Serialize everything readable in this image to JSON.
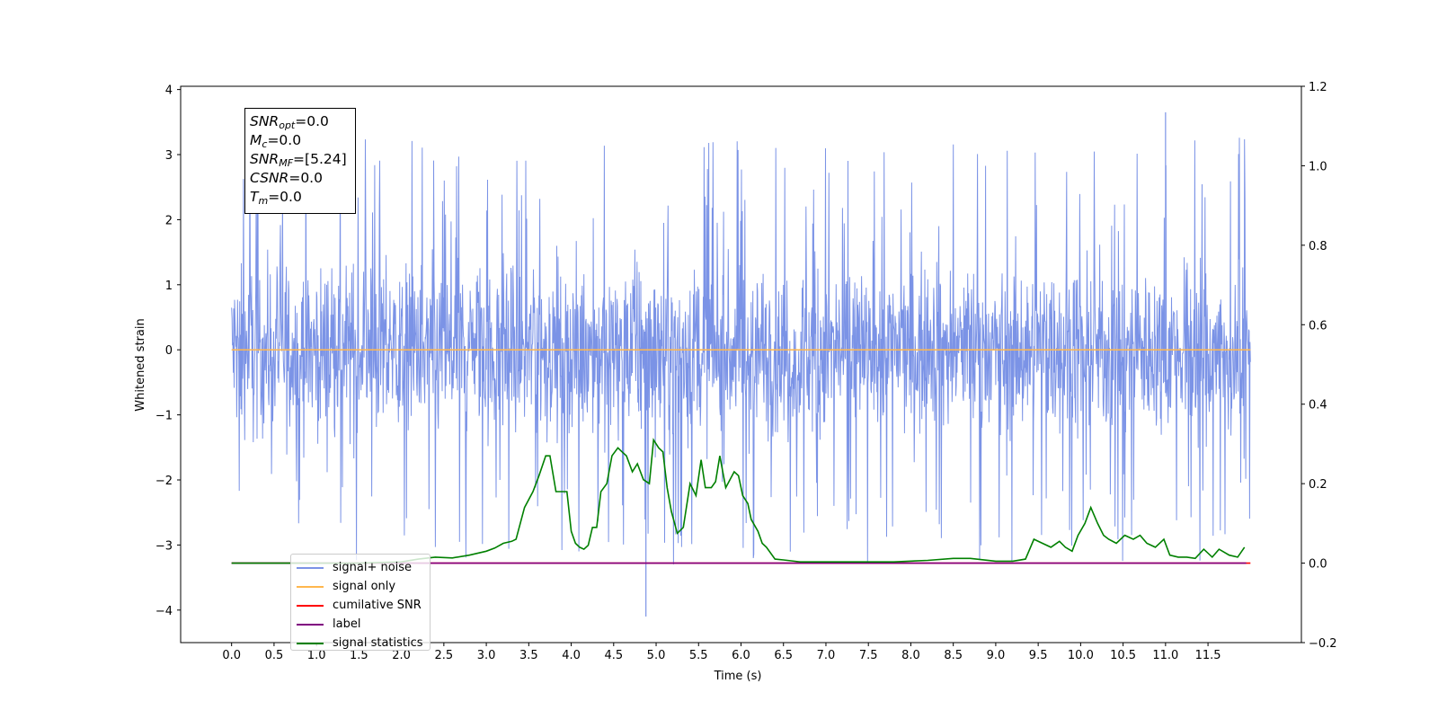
{
  "chart_data": {
    "type": "line",
    "xlabel": "Time (s)",
    "ylabel": "Whitened strain",
    "xlim": [
      -0.6,
      12.6
    ],
    "ylim": [
      -4.5,
      4.05
    ],
    "y2lim": [
      -0.2,
      1.2
    ],
    "x_ticks": [
      "0.0",
      "0.5",
      "1.0",
      "1.5",
      "2.0",
      "2.5",
      "3.0",
      "3.5",
      "4.0",
      "4.5",
      "5.0",
      "5.5",
      "6.0",
      "6.5",
      "7.0",
      "7.5",
      "8.0",
      "8.5",
      "9.0",
      "9.5",
      "10.0",
      "10.5",
      "11.0",
      "11.5"
    ],
    "y_ticks": [
      "4",
      "3",
      "2",
      "1",
      "0",
      "−1",
      "−2",
      "−3",
      "−4"
    ],
    "y2_ticks": [
      "1.2",
      "1.0",
      "0.8",
      "0.6",
      "0.4",
      "0.2",
      "0.0",
      "−0.2"
    ],
    "noise_band": {
      "x_range": [
        0.0,
        12.0
      ],
      "typical_range": [
        -1.8,
        1.8
      ],
      "max_peak": 3.65,
      "min_trough": -4.1
    },
    "series": [
      {
        "name": "signal+ noise",
        "color": "#7b93e6",
        "axis": "left",
        "x": [
          0.0,
          12.0
        ],
        "y": [
          0.0,
          0.0
        ]
      },
      {
        "name": "signal only",
        "color": "#ffb74d",
        "axis": "left",
        "x": [
          0.0,
          12.0
        ],
        "y": [
          0.0,
          0.0
        ]
      },
      {
        "name": "cumilative SNR",
        "color": "#ff0000",
        "axis": "right",
        "x": [
          0.0,
          12.0
        ],
        "y": [
          0.0,
          0.0
        ]
      },
      {
        "name": "label",
        "color": "#800080",
        "axis": "right",
        "x": [
          0.0,
          11.95
        ],
        "y": [
          0.0,
          0.0
        ]
      },
      {
        "name": "signal statistics",
        "color": "#008000",
        "axis": "right",
        "x": [
          0.0,
          0.5,
          1.0,
          1.5,
          2.0,
          2.2,
          2.4,
          2.6,
          2.8,
          3.0,
          3.1,
          3.2,
          3.3,
          3.35,
          3.45,
          3.55,
          3.62,
          3.7,
          3.75,
          3.82,
          3.87,
          3.95,
          4.0,
          4.05,
          4.1,
          4.15,
          4.2,
          4.25,
          4.3,
          4.35,
          4.42,
          4.48,
          4.55,
          4.6,
          4.65,
          4.72,
          4.78,
          4.85,
          4.92,
          4.97,
          5.03,
          5.08,
          5.13,
          5.18,
          5.25,
          5.32,
          5.4,
          5.47,
          5.53,
          5.58,
          5.65,
          5.7,
          5.75,
          5.82,
          5.87,
          5.92,
          5.97,
          6.02,
          6.08,
          6.12,
          6.2,
          6.25,
          6.3,
          6.4,
          6.5,
          6.7,
          6.9,
          7.1,
          7.4,
          7.8,
          8.2,
          8.5,
          8.7,
          9.0,
          9.2,
          9.35,
          9.45,
          9.55,
          9.65,
          9.75,
          9.82,
          9.9,
          9.97,
          10.05,
          10.12,
          10.2,
          10.27,
          10.33,
          10.42,
          10.52,
          10.62,
          10.7,
          10.78,
          10.88,
          10.98,
          11.05,
          11.15,
          11.25,
          11.35,
          11.45,
          11.55,
          11.63,
          11.75,
          11.85,
          11.93
        ],
        "y": [
          0.0,
          0.0,
          0.0,
          0.0,
          0.003,
          0.01,
          0.015,
          0.013,
          0.02,
          0.03,
          0.038,
          0.05,
          0.055,
          0.06,
          0.14,
          0.18,
          0.22,
          0.27,
          0.27,
          0.18,
          0.18,
          0.18,
          0.08,
          0.05,
          0.04,
          0.035,
          0.045,
          0.09,
          0.09,
          0.18,
          0.2,
          0.27,
          0.29,
          0.28,
          0.27,
          0.23,
          0.25,
          0.21,
          0.2,
          0.31,
          0.29,
          0.28,
          0.19,
          0.13,
          0.075,
          0.09,
          0.2,
          0.17,
          0.26,
          0.19,
          0.19,
          0.205,
          0.27,
          0.19,
          0.21,
          0.23,
          0.22,
          0.17,
          0.15,
          0.11,
          0.08,
          0.05,
          0.04,
          0.01,
          0.008,
          0.003,
          0.003,
          0.003,
          0.003,
          0.003,
          0.007,
          0.012,
          0.012,
          0.005,
          0.005,
          0.01,
          0.06,
          0.05,
          0.04,
          0.055,
          0.04,
          0.03,
          0.07,
          0.1,
          0.14,
          0.1,
          0.07,
          0.06,
          0.05,
          0.07,
          0.06,
          0.07,
          0.05,
          0.04,
          0.06,
          0.02,
          0.015,
          0.015,
          0.012,
          0.035,
          0.015,
          0.035,
          0.02,
          0.015,
          0.04
        ]
      }
    ],
    "annotation_box": {
      "lines": [
        {
          "sym": "SNR",
          "sub": "opt",
          "rest": "=0.0"
        },
        {
          "sym": "M",
          "sub": "c",
          "rest": "=0.0"
        },
        {
          "sym": "SNR",
          "sub": "MF",
          "rest": "=[5.24]"
        },
        {
          "sym": "CSNR",
          "sub": "",
          "rest": "=0.0"
        },
        {
          "sym": "T",
          "sub": "m",
          "rest": "=0.0"
        }
      ]
    },
    "legend": {
      "placement": "lower-left",
      "entries": [
        "signal+ noise",
        "signal only",
        "cumilative SNR",
        "label",
        "signal statistics"
      ]
    },
    "grid": false
  }
}
